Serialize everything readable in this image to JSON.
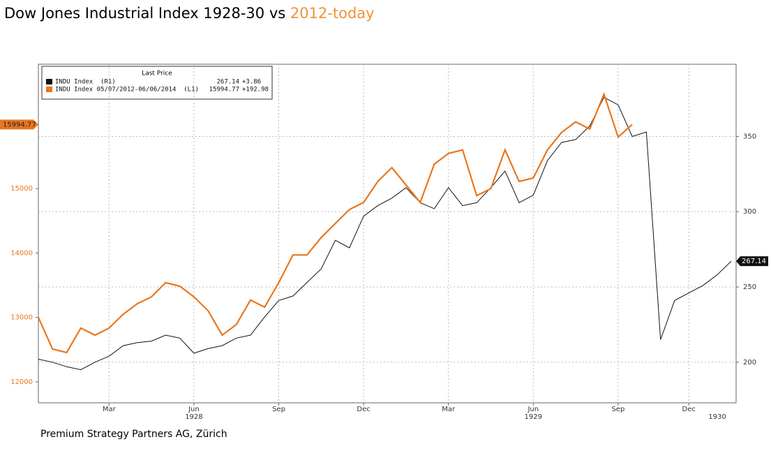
{
  "chart_data": {
    "type": "line",
    "title": "Dow Jones Industrial Index 1928-30 vs ",
    "title_highlight": "2012-today",
    "title_highlight_color": "#f0923a",
    "footer": "Premium Strategy Partners AG, Zürich",
    "legend_header": "Last Price",
    "categories": [
      null,
      null,
      null,
      null,
      null,
      "Mar",
      null,
      null,
      null,
      null,
      null,
      "Jun",
      null,
      null,
      null,
      null,
      null,
      "Sep",
      null,
      null,
      null,
      null,
      null,
      "Dec",
      null,
      null,
      null,
      null,
      null,
      "Mar",
      null,
      null,
      null,
      null,
      null,
      "Jun",
      null,
      null,
      null,
      null,
      null,
      "Sep",
      null,
      null,
      null,
      null,
      "Dec",
      null,
      null,
      null
    ],
    "year_labels": [
      "1928",
      "1929",
      "1930"
    ],
    "ylim": [
      11675,
      16930
    ],
    "yticks": [
      12000,
      13000,
      14000,
      15000
    ],
    "y2lim": [
      173,
      398
    ],
    "y2ticks": [
      200,
      250,
      300,
      350
    ],
    "grid": true,
    "series": [
      {
        "name": "INDU Index  (R1)",
        "color": "#111111",
        "axis": "y2",
        "last_label": "267.14",
        "change_label": "+3.86",
        "values": [
          202,
          200,
          197,
          195,
          200,
          204,
          211,
          213,
          214,
          218,
          216,
          206,
          209,
          211,
          216,
          218,
          230,
          241,
          244,
          253,
          262,
          281,
          276,
          297,
          304,
          309,
          316,
          306,
          302,
          316,
          304,
          306,
          316,
          327,
          306,
          311,
          334,
          346,
          348,
          357,
          376,
          371,
          350,
          353,
          215,
          241,
          246,
          251,
          258,
          267.14
        ]
      },
      {
        "name": "INDU Index 05/07/2012-06/06/2014  (L1)",
        "color": "#e8771e",
        "axis": "y",
        "last_label": "15994.77",
        "change_label": "+192.98",
        "values": [
          13000,
          12510,
          12455,
          12835,
          12725,
          12835,
          13050,
          13215,
          13320,
          13540,
          13485,
          13320,
          13105,
          12725,
          12890,
          13270,
          13160,
          13540,
          13970,
          13970,
          14240,
          14460,
          14675,
          14785,
          15110,
          15325,
          15055,
          14785,
          15380,
          15545,
          15600,
          14890,
          15000,
          15600,
          15110,
          15165,
          15600,
          15870,
          16035,
          15925,
          16465,
          15800,
          15994.77,
          null,
          null,
          null,
          null,
          null,
          null,
          null
        ]
      }
    ]
  }
}
